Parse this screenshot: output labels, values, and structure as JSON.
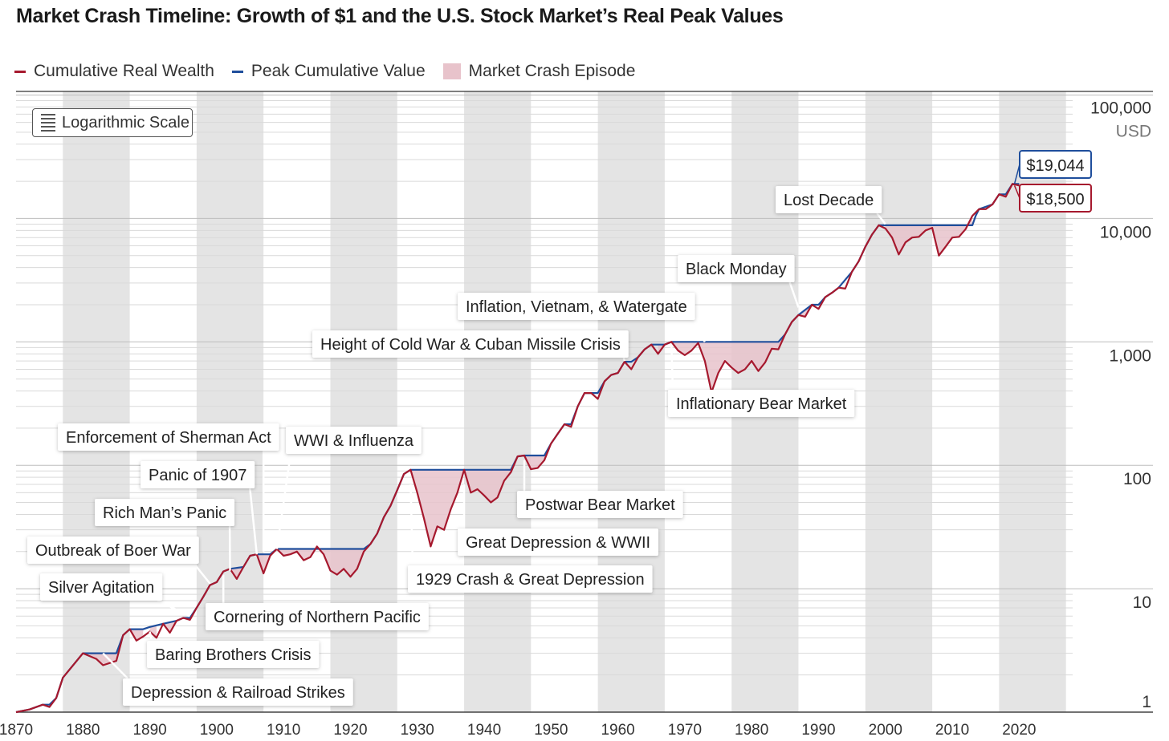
{
  "title": "Market Crash Timeline: Growth of $1 and the U.S. Stock Market’s Real Peak Values",
  "legend": [
    {
      "label": "Cumulative Real Wealth",
      "color": "#a6192e",
      "kind": "line"
    },
    {
      "label": "Peak Cumulative Value",
      "color": "#1f4e9c",
      "kind": "line"
    },
    {
      "label": "Market Crash Episode",
      "color": "#e8c3cb",
      "kind": "box"
    }
  ],
  "scale_badge": "Logarithmic Scale",
  "y_unit": "USD",
  "chart_data": {
    "type": "line",
    "yscale": "log",
    "ylim": [
      1,
      100000
    ],
    "xlim": [
      1870,
      2028
    ],
    "y_ticks": [
      "1",
      "10",
      "100",
      "1,000",
      "10,000",
      "100,000"
    ],
    "x_ticks": [
      "1870",
      "1880",
      "1890",
      "1900",
      "1910",
      "1920",
      "1930",
      "1940",
      "1950",
      "1960",
      "1970",
      "1980",
      "1990",
      "2000",
      "2010",
      "2020"
    ],
    "series": [
      {
        "name": "Cumulative Real Wealth",
        "color": "#a6192e",
        "points": [
          [
            1870,
            1.0
          ],
          [
            1872,
            1.05
          ],
          [
            1874,
            1.15
          ],
          [
            1875,
            1.1
          ],
          [
            1876,
            1.3
          ],
          [
            1877,
            1.9
          ],
          [
            1880,
            3.0
          ],
          [
            1882,
            2.7
          ],
          [
            1883,
            2.4
          ],
          [
            1885,
            2.6
          ],
          [
            1886,
            4.2
          ],
          [
            1887,
            4.7
          ],
          [
            1888,
            3.8
          ],
          [
            1889,
            4.1
          ],
          [
            1890,
            4.5
          ],
          [
            1891,
            4.0
          ],
          [
            1892,
            5.2
          ],
          [
            1893,
            4.4
          ],
          [
            1894,
            5.5
          ],
          [
            1895,
            5.8
          ],
          [
            1896,
            5.6
          ],
          [
            1897,
            7.0
          ],
          [
            1898,
            8.6
          ],
          [
            1899,
            10.7
          ],
          [
            1900,
            11.3
          ],
          [
            1901,
            13.8
          ],
          [
            1902,
            14.5
          ],
          [
            1903,
            12.0
          ],
          [
            1904,
            15.0
          ],
          [
            1905,
            18.5
          ],
          [
            1906,
            19.0
          ],
          [
            1907,
            13.3
          ],
          [
            1908,
            18.5
          ],
          [
            1909,
            21.0
          ],
          [
            1910,
            18.5
          ],
          [
            1911,
            19.0
          ],
          [
            1912,
            20.0
          ],
          [
            1913,
            17.0
          ],
          [
            1914,
            18.0
          ],
          [
            1915,
            22.0
          ],
          [
            1916,
            19.0
          ],
          [
            1917,
            14.0
          ],
          [
            1918,
            13.0
          ],
          [
            1919,
            14.5
          ],
          [
            1920,
            12.5
          ],
          [
            1921,
            14.5
          ],
          [
            1922,
            20.0
          ],
          [
            1923,
            23.0
          ],
          [
            1924,
            28.0
          ],
          [
            1925,
            38.0
          ],
          [
            1926,
            47.0
          ],
          [
            1927,
            63.0
          ],
          [
            1928,
            85.0
          ],
          [
            1929,
            92.0
          ],
          [
            1930,
            60.0
          ],
          [
            1931,
            37.0
          ],
          [
            1932,
            22.0
          ],
          [
            1933,
            32.0
          ],
          [
            1934,
            30.0
          ],
          [
            1935,
            44.0
          ],
          [
            1936,
            60.0
          ],
          [
            1937,
            92.0
          ],
          [
            1938,
            60.0
          ],
          [
            1939,
            64.0
          ],
          [
            1940,
            57.0
          ],
          [
            1941,
            50.0
          ],
          [
            1942,
            55.0
          ],
          [
            1943,
            75.0
          ],
          [
            1944,
            88.0
          ],
          [
            1945,
            118.0
          ],
          [
            1946,
            120.0
          ],
          [
            1947,
            93.0
          ],
          [
            1948,
            95.0
          ],
          [
            1949,
            110.0
          ],
          [
            1950,
            150.0
          ],
          [
            1951,
            180.0
          ],
          [
            1952,
            215.0
          ],
          [
            1953,
            205.0
          ],
          [
            1954,
            300.0
          ],
          [
            1955,
            385.0
          ],
          [
            1956,
            385.0
          ],
          [
            1957,
            345.0
          ],
          [
            1958,
            480.0
          ],
          [
            1959,
            540.0
          ],
          [
            1960,
            560.0
          ],
          [
            1961,
            690.0
          ],
          [
            1962,
            600.0
          ],
          [
            1963,
            750.0
          ],
          [
            1964,
            870.0
          ],
          [
            1965,
            950.0
          ],
          [
            1966,
            800.0
          ],
          [
            1967,
            950.0
          ],
          [
            1968,
            1000.0
          ],
          [
            1969,
            850.0
          ],
          [
            1970,
            780.0
          ],
          [
            1971,
            850.0
          ],
          [
            1972,
            980.0
          ],
          [
            1973,
            700.0
          ],
          [
            1974,
            390.0
          ],
          [
            1975,
            560.0
          ],
          [
            1976,
            700.0
          ],
          [
            1977,
            620.0
          ],
          [
            1978,
            560.0
          ],
          [
            1979,
            600.0
          ],
          [
            1980,
            700.0
          ],
          [
            1981,
            580.0
          ],
          [
            1982,
            680.0
          ],
          [
            1983,
            880.0
          ],
          [
            1984,
            870.0
          ],
          [
            1985,
            1150.0
          ],
          [
            1986,
            1450.0
          ],
          [
            1987,
            1650.0
          ],
          [
            1988,
            1600.0
          ],
          [
            1989,
            2000.0
          ],
          [
            1990,
            1850.0
          ],
          [
            1991,
            2300.0
          ],
          [
            1992,
            2500.0
          ],
          [
            1993,
            2750.0
          ],
          [
            1994,
            2700.0
          ],
          [
            1995,
            3700.0
          ],
          [
            1996,
            4500.0
          ],
          [
            1997,
            5900.0
          ],
          [
            1998,
            7400.0
          ],
          [
            1999,
            8800.0
          ],
          [
            2000,
            8300.0
          ],
          [
            2001,
            7000.0
          ],
          [
            2002,
            5100.0
          ],
          [
            2003,
            6400.0
          ],
          [
            2004,
            7000.0
          ],
          [
            2005,
            7100.0
          ],
          [
            2006,
            8000.0
          ],
          [
            2007,
            8400.0
          ],
          [
            2008,
            5000.0
          ],
          [
            2009,
            5900.0
          ],
          [
            2010,
            7000.0
          ],
          [
            2011,
            7100.0
          ],
          [
            2012,
            8200.0
          ],
          [
            2013,
            10500.0
          ],
          [
            2014,
            11900.0
          ],
          [
            2015,
            11900.0
          ],
          [
            2016,
            13000.0
          ],
          [
            2017,
            15700.0
          ],
          [
            2018,
            15000.0
          ],
          [
            2019,
            19044.0
          ],
          [
            2020,
            18500.0
          ]
        ]
      },
      {
        "name": "Peak Cumulative Value",
        "color": "#1f4e9c",
        "points": [
          [
            1870,
            1.0
          ],
          [
            1872,
            1.05
          ],
          [
            1874,
            1.15
          ],
          [
            1875,
            1.15
          ],
          [
            1876,
            1.3
          ],
          [
            1877,
            1.9
          ],
          [
            1880,
            3.0
          ],
          [
            1885,
            3.0
          ],
          [
            1886,
            4.2
          ],
          [
            1887,
            4.7
          ],
          [
            1889,
            4.7
          ],
          [
            1890,
            4.9
          ],
          [
            1892,
            5.2
          ],
          [
            1894,
            5.5
          ],
          [
            1895,
            5.8
          ],
          [
            1896,
            5.8
          ],
          [
            1897,
            7.0
          ],
          [
            1898,
            8.6
          ],
          [
            1899,
            10.7
          ],
          [
            1900,
            11.3
          ],
          [
            1901,
            13.8
          ],
          [
            1902,
            14.5
          ],
          [
            1904,
            15.0
          ],
          [
            1905,
            18.5
          ],
          [
            1906,
            19.0
          ],
          [
            1907,
            19.0
          ],
          [
            1908,
            19.0
          ],
          [
            1909,
            21.0
          ],
          [
            1921,
            21.0
          ],
          [
            1922,
            21.0
          ],
          [
            1923,
            23.0
          ],
          [
            1924,
            28.0
          ],
          [
            1925,
            38.0
          ],
          [
            1926,
            47.0
          ],
          [
            1927,
            63.0
          ],
          [
            1928,
            85.0
          ],
          [
            1929,
            92.0
          ],
          [
            1944,
            92.0
          ],
          [
            1945,
            118.0
          ],
          [
            1946,
            120.0
          ],
          [
            1949,
            120.0
          ],
          [
            1950,
            150.0
          ],
          [
            1951,
            180.0
          ],
          [
            1952,
            215.0
          ],
          [
            1953,
            215.0
          ],
          [
            1954,
            300.0
          ],
          [
            1955,
            385.0
          ],
          [
            1957,
            385.0
          ],
          [
            1958,
            480.0
          ],
          [
            1959,
            540.0
          ],
          [
            1960,
            560.0
          ],
          [
            1961,
            690.0
          ],
          [
            1962,
            690.0
          ],
          [
            1963,
            750.0
          ],
          [
            1964,
            870.0
          ],
          [
            1965,
            950.0
          ],
          [
            1967,
            950.0
          ],
          [
            1968,
            1000.0
          ],
          [
            1984,
            1000.0
          ],
          [
            1985,
            1150.0
          ],
          [
            1986,
            1450.0
          ],
          [
            1987,
            1650.0
          ],
          [
            1989,
            2000.0
          ],
          [
            1990,
            2000.0
          ],
          [
            1991,
            2300.0
          ],
          [
            1992,
            2500.0
          ],
          [
            1993,
            2750.0
          ],
          [
            1995,
            3700.0
          ],
          [
            1996,
            4500.0
          ],
          [
            1997,
            5900.0
          ],
          [
            1998,
            7400.0
          ],
          [
            1999,
            8800.0
          ],
          [
            2013,
            8800.0
          ],
          [
            2013.5,
            10500.0
          ],
          [
            2014,
            11900.0
          ],
          [
            2016,
            13000.0
          ],
          [
            2017,
            15700.0
          ],
          [
            2018,
            15700.0
          ],
          [
            2019,
            19044.0
          ],
          [
            2020,
            19044.0
          ]
        ]
      }
    ],
    "crash_episodes": [
      [
        1881,
        1885
      ],
      [
        1887,
        1889
      ],
      [
        1890,
        1891
      ],
      [
        1892,
        1894
      ],
      [
        1896,
        1897
      ],
      [
        1902,
        1904
      ],
      [
        1906,
        1909
      ],
      [
        1909,
        1922
      ],
      [
        1929,
        1945
      ],
      [
        1946,
        1950
      ],
      [
        1966,
        1968
      ],
      [
        1968,
        1985
      ],
      [
        1987,
        1989
      ],
      [
        2000,
        2013
      ]
    ],
    "shaded_decades": [
      [
        1877,
        1887
      ],
      [
        1897,
        1907
      ],
      [
        1917,
        1927
      ],
      [
        1937,
        1947
      ],
      [
        1957,
        1967
      ],
      [
        1977,
        1987
      ],
      [
        1997,
        2007
      ],
      [
        2017,
        2027
      ]
    ],
    "end_labels": [
      {
        "text": "$19,044",
        "color": "#1f4e9c"
      },
      {
        "text": "$18,500",
        "color": "#a6192e"
      }
    ],
    "annotations": [
      {
        "text": "Lost Decade",
        "x": 2000,
        "y": 9000,
        "side": "above"
      },
      {
        "text": "Black Monday",
        "x": 1987,
        "y": 1900,
        "side": "above"
      },
      {
        "text": "Inflation, Vietnam, & Watergate",
        "x": 1973,
        "y": 1000,
        "side": "above"
      },
      {
        "text": "Height of Cold War & Cuban Missile Crisis",
        "x": 1961,
        "y": 700,
        "side": "above"
      },
      {
        "text": "Inflationary Bear Market",
        "x": 1968,
        "y": 950,
        "side": "below"
      },
      {
        "text": "Enforcement of Sherman Act",
        "x": 1907,
        "y": 20,
        "side": "above"
      },
      {
        "text": "WWI & Influenza",
        "x": 1909,
        "y": 21,
        "side": "above"
      },
      {
        "text": "Panic of 1907",
        "x": 1906,
        "y": 19,
        "side": "above"
      },
      {
        "text": "Rich Man’s Panic",
        "x": 1902,
        "y": 14,
        "side": "above"
      },
      {
        "text": "Outbreak of Boer War",
        "x": 1899,
        "y": 11,
        "side": "above"
      },
      {
        "text": "Silver Agitation",
        "x": 1896,
        "y": 6,
        "side": "above"
      },
      {
        "text": "Postwar Bear Market",
        "x": 1946,
        "y": 110,
        "side": "below"
      },
      {
        "text": "Great Depression & WWII",
        "x": 1937,
        "y": 70,
        "side": "below"
      },
      {
        "text": "1929 Crash & Great Depression",
        "x": 1929,
        "y": 70,
        "side": "below"
      },
      {
        "text": "Cornering of Northern Pacific",
        "x": 1901,
        "y": 13,
        "side": "below"
      },
      {
        "text": "Baring Brothers Crisis",
        "x": 1890,
        "y": 4.5,
        "side": "below"
      },
      {
        "text": "Depression & Railroad Strikes",
        "x": 1883,
        "y": 3,
        "side": "below"
      }
    ]
  }
}
